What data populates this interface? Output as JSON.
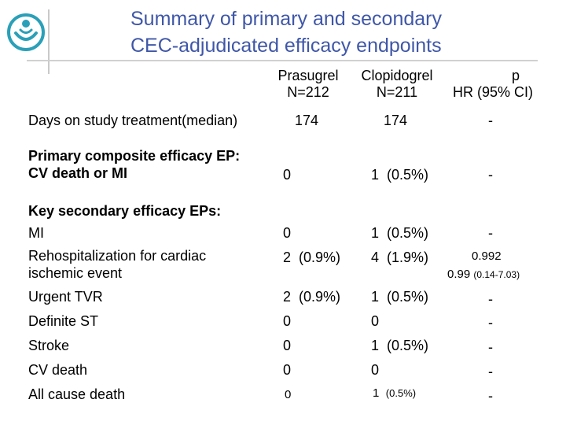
{
  "slide": {
    "title_line1": "Summary of primary and secondary",
    "title_line2": "CEC-adjudicated efficacy endpoints",
    "logo_icon": "circular-figure-logo-icon",
    "accent_color": "#3f57a8"
  },
  "columns": {
    "prasugrel": {
      "name": "Prasugrel",
      "n": "N=212"
    },
    "clopidogrel": {
      "name": "Clopidogrel",
      "n": "N=211"
    },
    "p": {
      "name": "p",
      "sub": "HR (95% CI)"
    }
  },
  "rows": {
    "days": {
      "label": "Days on study treatment(median)",
      "prasugrel": "174",
      "clopidogrel": "174",
      "p": "-"
    },
    "primary": {
      "label_line1": "Primary composite efficacy EP:",
      "label_line2": "CV death or MI",
      "prasugrel": "0",
      "clopidogrel": "1  (0.5%)",
      "p": "-"
    },
    "key_secondary_heading": "Key secondary efficacy EPs:",
    "mi": {
      "label": "MI",
      "prasugrel": "0",
      "clopidogrel": "1  (0.5%)",
      "p": "-"
    },
    "rehosp": {
      "label_line1": "Rehospitalization for cardiac",
      "label_line2": "ischemic event",
      "prasugrel": "2  (0.9%)",
      "clopidogrel": "4  (1.9%)",
      "p": "0.992",
      "hr_value": "0.99",
      "hr_ci": "(0.14-7.03)"
    },
    "tvr": {
      "label": "Urgent TVR",
      "prasugrel": "2  (0.9%)",
      "clopidogrel": "1  (0.5%)",
      "p": "-"
    },
    "st": {
      "label": "Definite ST",
      "prasugrel": "0",
      "clopidogrel": "0",
      "p": "-"
    },
    "stroke": {
      "label": "Stroke",
      "prasugrel": "0",
      "clopidogrel": "1  (0.5%)",
      "p": "-"
    },
    "cvdeath": {
      "label": "CV death",
      "prasugrel": "0",
      "clopidogrel": "0",
      "p": "-"
    },
    "allcause": {
      "label": "All cause death",
      "prasugrel": "0",
      "clopidogrel_n": "1",
      "clopidogrel_pct": "(0.5%)",
      "p": "-"
    }
  }
}
